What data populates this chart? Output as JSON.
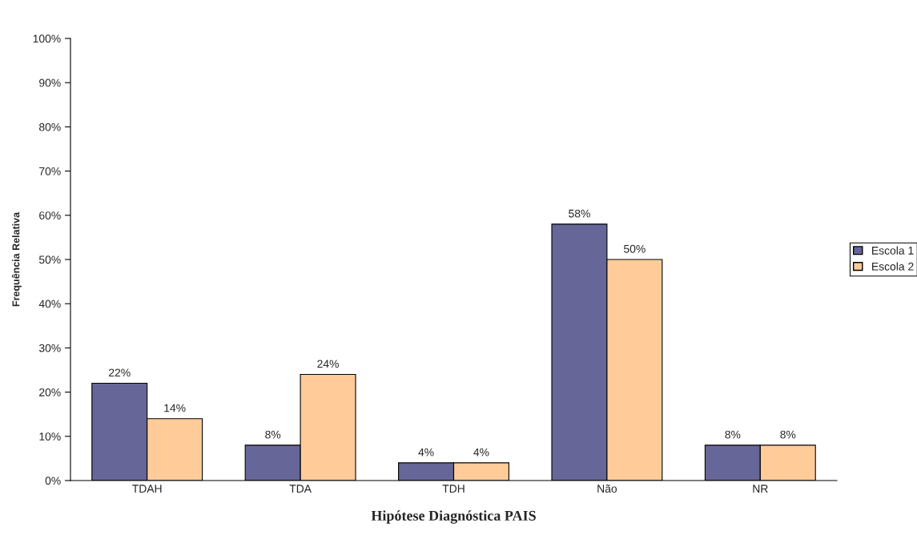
{
  "chart_data": {
    "type": "bar",
    "xlabel": "Hipótese Diagnóstica PAIS",
    "ylabel": "Frequência Relativa",
    "categories": [
      "TDAH",
      "TDA",
      "TDH",
      "Não",
      "NR"
    ],
    "series": [
      {
        "name": "Escola 1",
        "color": "#666699",
        "values": [
          22,
          8,
          4,
          58,
          8
        ],
        "value_labels": [
          "22%",
          "8%",
          "4%",
          "58%",
          "8%"
        ]
      },
      {
        "name": "Escola 2",
        "color": "#ffcc99",
        "values": [
          14,
          24,
          4,
          50,
          8
        ],
        "value_labels": [
          "14%",
          "24%",
          "4%",
          "50%",
          "8%"
        ]
      }
    ],
    "ylim": [
      0,
      100
    ],
    "yticks": [
      {
        "value": 0,
        "label": "0%"
      },
      {
        "value": 10,
        "label": "10%"
      },
      {
        "value": 20,
        "label": "20%"
      },
      {
        "value": 30,
        "label": "30%"
      },
      {
        "value": 40,
        "label": "40%"
      },
      {
        "value": 50,
        "label": "50%"
      },
      {
        "value": 60,
        "label": "60%"
      },
      {
        "value": 70,
        "label": "70%"
      },
      {
        "value": 80,
        "label": "80%"
      },
      {
        "value": 90,
        "label": "90%"
      },
      {
        "value": 100,
        "label": "100%"
      }
    ],
    "grid": false,
    "legend": "right"
  }
}
